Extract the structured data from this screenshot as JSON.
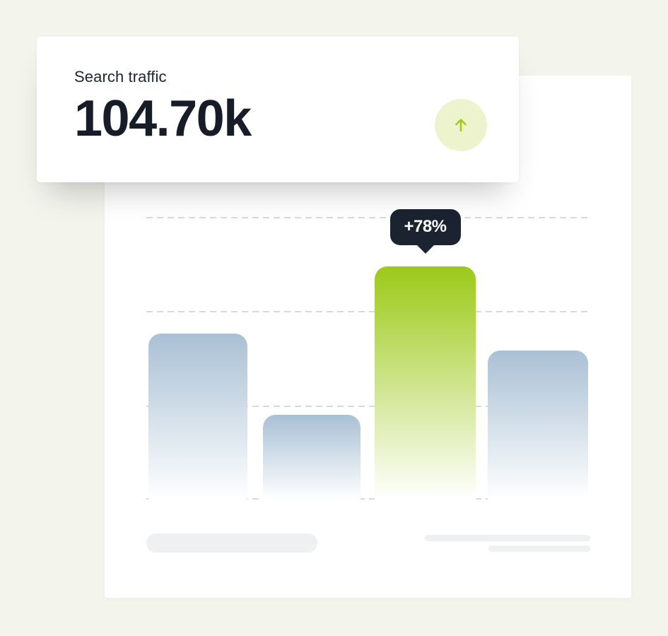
{
  "page": {
    "background": "#f3f4ec"
  },
  "stat_card": {
    "title": "Search traffic",
    "value": "104.70k",
    "trend_icon": "arrow-up-icon",
    "colors": {
      "icon_circle_bg": "#edf4cd",
      "icon_arrow": "#a3cb15",
      "title_text": "#1e2430",
      "value_text": "#161d28"
    }
  },
  "chart_data": {
    "type": "bar",
    "title": "",
    "xlabel": "",
    "ylabel": "",
    "categories": [
      "",
      "",
      "",
      ""
    ],
    "values_pct": [
      58.8,
      30.0,
      82.5,
      52.8
    ],
    "highlighted_index": 2,
    "highlight_label": "+78%",
    "legend": "none",
    "gridlines": {
      "count": 4,
      "style": "dashed",
      "orientation": "horizontal"
    },
    "axis_tick_labels": "none (skeleton placeholder pills shown below axis)",
    "colors": {
      "bar_default_top": "#a9c0d4",
      "bar_highlight_top": "#9cc918",
      "bar_fade_to": "#ffffff",
      "gridline": "#d9d9d9",
      "tooltip_bg": "#1b2230",
      "tooltip_text": "#ffffff",
      "placeholder": "#eef0f2"
    }
  }
}
